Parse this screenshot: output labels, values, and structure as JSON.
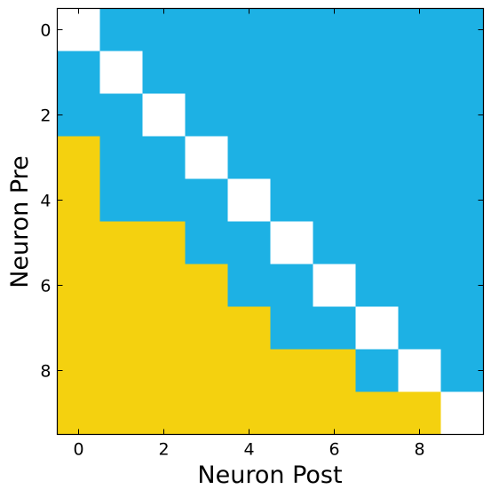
{
  "chart_data": {
    "type": "heatmap",
    "xlabel": "Neuron Post",
    "ylabel": "Neuron Pre",
    "rows": 10,
    "cols": 10,
    "xlim": [
      -0.5,
      9.5
    ],
    "ylim": [
      9.5,
      -0.5
    ],
    "xticks": [
      0,
      2,
      4,
      6,
      8
    ],
    "yticks": [
      0,
      2,
      4,
      6,
      8
    ],
    "xtick_labels": [
      "0",
      "2",
      "4",
      "6",
      "8"
    ],
    "ytick_labels": [
      "0",
      "2",
      "4",
      "6",
      "8"
    ],
    "category_colors": {
      "diagonal": "#ffffff",
      "upper": "#1db1e4",
      "lower": "#f4d10f"
    },
    "matrix": [
      [
        "diagonal",
        "upper",
        "upper",
        "upper",
        "upper",
        "upper",
        "upper",
        "upper",
        "upper",
        "upper"
      ],
      [
        "upper",
        "diagonal",
        "upper",
        "upper",
        "upper",
        "upper",
        "upper",
        "upper",
        "upper",
        "upper"
      ],
      [
        "upper",
        "upper",
        "diagonal",
        "upper",
        "upper",
        "upper",
        "upper",
        "upper",
        "upper",
        "upper"
      ],
      [
        "lower",
        "upper",
        "upper",
        "diagonal",
        "upper",
        "upper",
        "upper",
        "upper",
        "upper",
        "upper"
      ],
      [
        "lower",
        "upper",
        "upper",
        "upper",
        "diagonal",
        "upper",
        "upper",
        "upper",
        "upper",
        "upper"
      ],
      [
        "lower",
        "lower",
        "lower",
        "upper",
        "upper",
        "diagonal",
        "upper",
        "upper",
        "upper",
        "upper"
      ],
      [
        "lower",
        "lower",
        "lower",
        "lower",
        "upper",
        "upper",
        "diagonal",
        "upper",
        "upper",
        "upper"
      ],
      [
        "lower",
        "lower",
        "lower",
        "lower",
        "lower",
        "upper",
        "upper",
        "diagonal",
        "upper",
        "upper"
      ],
      [
        "lower",
        "lower",
        "lower",
        "lower",
        "lower",
        "lower",
        "lower",
        "upper",
        "diagonal",
        "upper"
      ],
      [
        "lower",
        "lower",
        "lower",
        "lower",
        "lower",
        "lower",
        "lower",
        "lower",
        "lower",
        "diagonal"
      ]
    ]
  }
}
